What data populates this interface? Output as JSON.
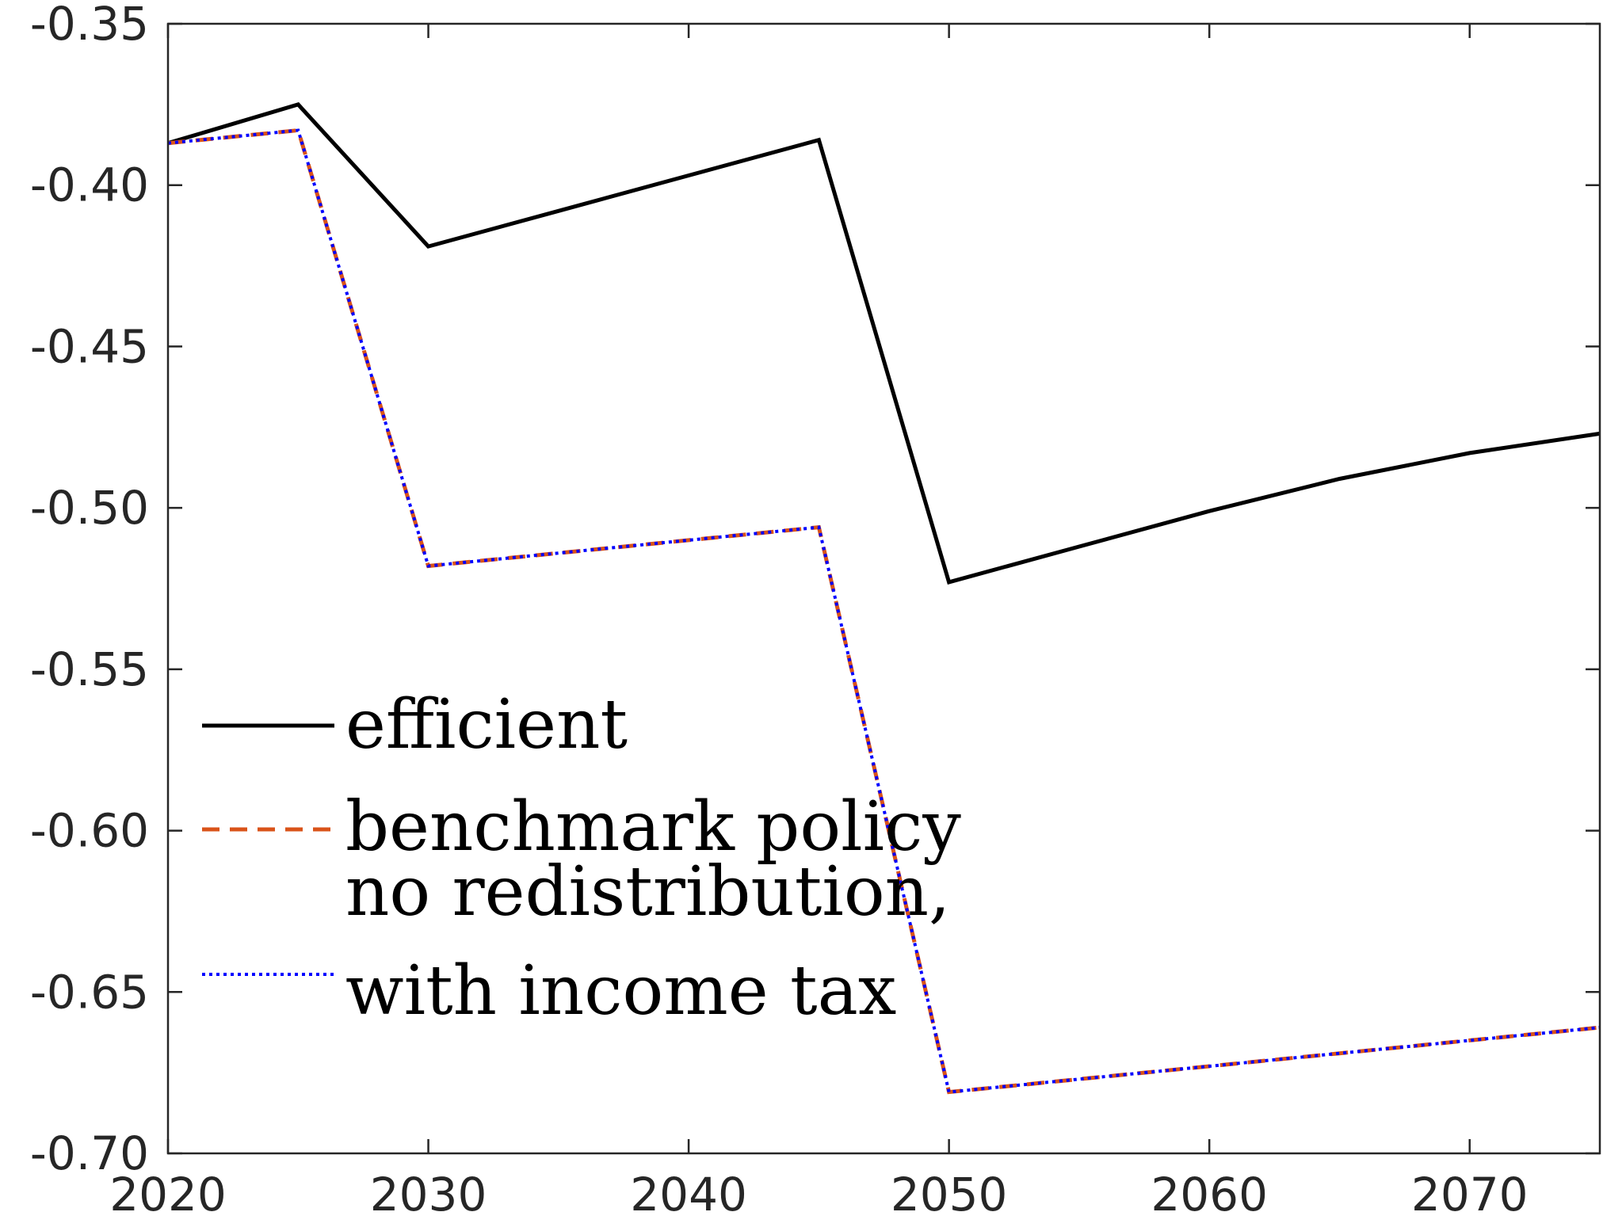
{
  "chart_data": {
    "type": "line",
    "title": "",
    "xlabel": "",
    "ylabel": "",
    "xlim": [
      2020,
      2075
    ],
    "ylim": [
      -0.7,
      -0.35
    ],
    "x_ticks": [
      "2020",
      "2030",
      "2040",
      "2050",
      "2060",
      "2070"
    ],
    "y_ticks": [
      "-0.35",
      "-0.40",
      "-0.45",
      "-0.50",
      "-0.55",
      "-0.60",
      "-0.65",
      "-0.70"
    ],
    "grid": false,
    "legend_position": "lower-left",
    "x": [
      2020,
      2025,
      2030,
      2035,
      2040,
      2045,
      2050,
      2055,
      2060,
      2065,
      2070,
      2075
    ],
    "series": [
      {
        "name": "efficient",
        "color": "#000000",
        "dash": "solid",
        "values": [
          -0.387,
          -0.375,
          -0.419,
          -0.408,
          -0.397,
          -0.386,
          -0.523,
          -0.512,
          -0.501,
          -0.491,
          -0.483,
          -0.477
        ]
      },
      {
        "name": "benchmark policy",
        "color": "#D95319",
        "dash": "dashed",
        "values": [
          -0.387,
          -0.383,
          -0.518,
          -0.514,
          -0.51,
          -0.506,
          -0.681,
          -0.677,
          -0.673,
          -0.669,
          -0.665,
          -0.661
        ]
      },
      {
        "name": "no redistribution, with income tax",
        "name_lines": [
          "no redistribution,",
          "with income tax"
        ],
        "color": "#0000FF",
        "dash": "dotted",
        "values": [
          -0.387,
          -0.383,
          -0.518,
          -0.514,
          -0.51,
          -0.506,
          -0.681,
          -0.677,
          -0.673,
          -0.669,
          -0.665,
          -0.661
        ]
      }
    ]
  }
}
